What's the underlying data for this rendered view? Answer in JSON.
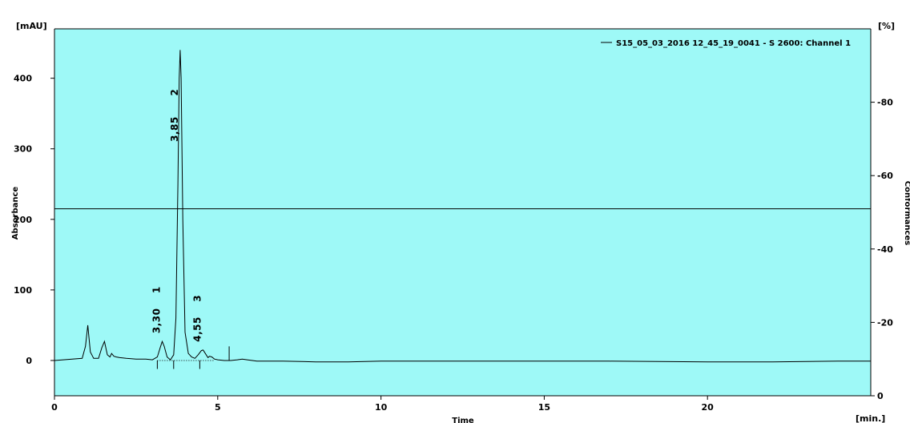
{
  "chart_data": {
    "type": "line",
    "background_color": "#9ef9f7",
    "line_color": "#000000",
    "y_unit": "[mAU]",
    "y2_unit": "[%]",
    "x_unit": "[min.]",
    "xlabel": "Time",
    "ylabel": "Absorbance",
    "y2label": "Conformances",
    "xlim": [
      0,
      25
    ],
    "ylim": [
      -50,
      470
    ],
    "y2lim": [
      0,
      100
    ],
    "x_ticks": [
      0,
      5,
      10,
      15,
      20
    ],
    "y_ticks": [
      0,
      100,
      200,
      300,
      400
    ],
    "y2_ticks": [
      0,
      20,
      40,
      60,
      80
    ],
    "y2_tick_labels": [
      "0",
      "-20",
      "-40",
      "-60",
      "-80"
    ],
    "horizontal_reference_line": 215,
    "legend": "S15_05_03_2016 12_45_19_0041 - S 2600: Channel 1",
    "legend_position": "top-right",
    "series": [
      {
        "name": "S15_05_03_2016 12_45_19_0041 - S 2600: Channel 1",
        "x": [
          0,
          0.85,
          0.95,
          1.02,
          1.1,
          1.2,
          1.35,
          1.45,
          1.53,
          1.62,
          1.7,
          1.75,
          1.82,
          1.9,
          2.0,
          2.2,
          2.5,
          2.8,
          3.0,
          3.15,
          3.25,
          3.3,
          3.36,
          3.45,
          3.55,
          3.65,
          3.72,
          3.78,
          3.82,
          3.85,
          3.88,
          3.93,
          4.0,
          4.1,
          4.2,
          4.3,
          4.4,
          4.5,
          4.55,
          4.62,
          4.7,
          4.75,
          4.82,
          4.9,
          5.0,
          5.2,
          5.4,
          5.6,
          5.75,
          5.9,
          6.2,
          7.0,
          8.0,
          9.0,
          10.0,
          12.0,
          15.0,
          17.0,
          20.0,
          22.0,
          24.0,
          25.0
        ],
        "y": [
          0,
          3,
          20,
          50,
          12,
          3,
          3,
          18,
          27,
          8,
          5,
          10,
          6,
          5,
          4,
          3,
          2,
          2,
          1,
          5,
          20,
          27,
          20,
          5,
          1,
          8,
          60,
          250,
          400,
          440,
          400,
          200,
          40,
          10,
          5,
          3,
          8,
          14,
          15,
          10,
          4,
          6,
          5,
          2,
          1,
          0,
          0,
          1,
          2,
          1,
          -1,
          -1,
          -2,
          -2,
          -1,
          -1,
          -1,
          -1,
          -2,
          -2,
          -1,
          -1
        ]
      }
    ],
    "peaks": [
      {
        "number": "1",
        "time": "3,30",
        "x": 3.3,
        "y": 27
      },
      {
        "number": "2",
        "time": "3,85",
        "x": 3.85,
        "y": 440
      },
      {
        "number": "3",
        "time": "4,55",
        "x": 4.55,
        "y": 15
      }
    ],
    "peak_markers": [
      3.15,
      3.65,
      4.45,
      5.35
    ],
    "peak_marker_values": [
      -12,
      -12,
      -12,
      20
    ]
  }
}
